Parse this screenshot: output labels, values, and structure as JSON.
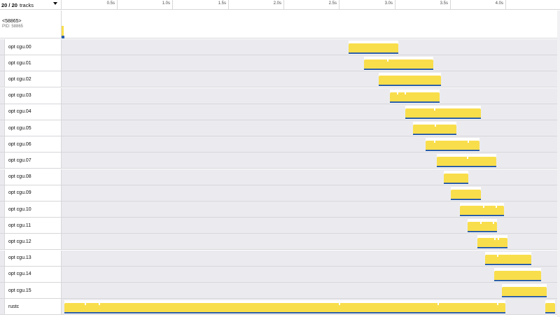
{
  "header": {
    "track_count": "20 / 20",
    "track_count_suffix": "tracks",
    "ticks": [
      "0.5s",
      "1.0s",
      "1.5s",
      "2.0s",
      "2.5s",
      "3.0s",
      "3.5s",
      "4.0s"
    ],
    "dropdown_icon": "triangle-down-icon"
  },
  "process": {
    "name": "<58865>",
    "pid": "PID: 58865"
  },
  "threads": [
    {
      "label": "opt cgu.00"
    },
    {
      "label": "opt cgu.01"
    },
    {
      "label": "opt cgu.02"
    },
    {
      "label": "opt cgu.03"
    },
    {
      "label": "opt cgu.04"
    },
    {
      "label": "opt cgu.05"
    },
    {
      "label": "opt cgu.06"
    },
    {
      "label": "opt cgu.07"
    },
    {
      "label": "opt cgu.08"
    },
    {
      "label": "opt cgu.09"
    },
    {
      "label": "opt cgu.10"
    },
    {
      "label": "opt cgu.11"
    },
    {
      "label": "opt cgu.12"
    },
    {
      "label": "opt cgu.13"
    },
    {
      "label": "opt cgu.14"
    },
    {
      "label": "opt cgu.15"
    },
    {
      "label": "rustc"
    }
  ],
  "colors": {
    "activity": "#f9de4c",
    "activity_base": "#2d5fa8",
    "track_bg": "#ebebef",
    "border": "#d7d7db"
  }
}
